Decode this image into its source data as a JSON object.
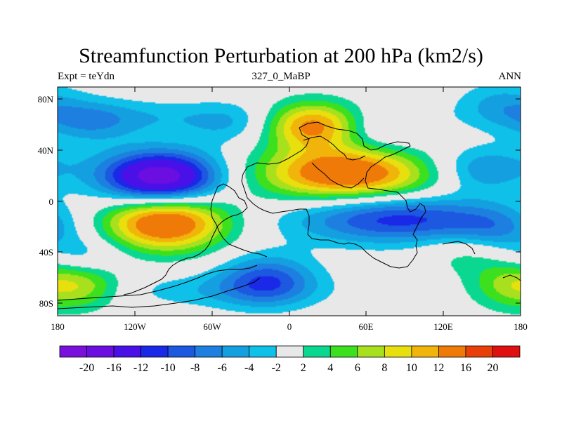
{
  "title": "Streamfunction Perturbation at 200 hPa (km2/s)",
  "left_string": "Expt = teYdn",
  "center_string": "327_0_MaBP",
  "right_string": "ANN",
  "y_axis": {
    "ticks": [
      {
        "value": 80,
        "label": "80N"
      },
      {
        "value": 40,
        "label": "40N"
      },
      {
        "value": 0,
        "label": "0"
      },
      {
        "value": -40,
        "label": "40S"
      },
      {
        "value": -80,
        "label": "80S"
      }
    ]
  },
  "x_axis": {
    "ticks": [
      {
        "value": -180,
        "label": "180"
      },
      {
        "value": -120,
        "label": "120W"
      },
      {
        "value": -60,
        "label": "60W"
      },
      {
        "value": 0,
        "label": "0"
      },
      {
        "value": 60,
        "label": "60E"
      },
      {
        "value": 120,
        "label": "120E"
      },
      {
        "value": 180,
        "label": "180"
      }
    ]
  },
  "colorbar": {
    "colors": [
      "#7a10dc",
      "#6a0ee2",
      "#4a10e8",
      "#1a28e8",
      "#1d58e0",
      "#1d80e0",
      "#14a0e0",
      "#0fc0e8",
      "#e8e8e8",
      "#0ad890",
      "#3ce01e",
      "#a8e01e",
      "#e8e00e",
      "#f0b40a",
      "#f07a08",
      "#e84008",
      "#e01010"
    ],
    "labels": [
      "-20",
      "-16",
      "-12",
      "-10",
      "-8",
      "-6",
      "-4",
      "-2",
      "2",
      "4",
      "6",
      "8",
      "10",
      "12",
      "16",
      "20"
    ]
  },
  "chart_data": {
    "type": "heatmap",
    "title": "Streamfunction Perturbation at 200 hPa (km2/s)",
    "xlabel": "",
    "ylabel": "",
    "xlim": [
      -180,
      180
    ],
    "ylim": [
      -90,
      90
    ],
    "levels": [
      -20,
      -16,
      -12,
      -10,
      -8,
      -6,
      -4,
      -2,
      2,
      4,
      6,
      8,
      10,
      12,
      16,
      20
    ],
    "features": [
      {
        "type": "low",
        "lon": -100,
        "lat": 18,
        "value": -20
      },
      {
        "type": "high",
        "lon": -97,
        "lat": -16,
        "value": 17
      },
      {
        "type": "high",
        "lon": 45,
        "lat": 22,
        "value": 16
      },
      {
        "type": "high",
        "lon": 18,
        "lat": 60,
        "value": 13
      },
      {
        "type": "low",
        "lon": 80,
        "lat": -12,
        "value": -8
      },
      {
        "type": "low",
        "lon": -17,
        "lat": -62,
        "value": -9
      },
      {
        "type": "high",
        "lon": -158,
        "lat": -64,
        "value": 7
      },
      {
        "type": "high",
        "lon": 170,
        "lat": -65,
        "value": 6
      },
      {
        "type": "low",
        "lon": -155,
        "lat": 62,
        "value": -4
      },
      {
        "type": "low",
        "lon": -45,
        "lat": 60,
        "value": -3
      },
      {
        "type": "low",
        "lon": 165,
        "lat": 78,
        "value": -4
      },
      {
        "type": "low",
        "lon": 150,
        "lat": 22,
        "value": -4
      },
      {
        "type": "low",
        "lon": 160,
        "lat": -22,
        "value": -4
      },
      {
        "type": "low",
        "lon": 70,
        "lat": 55,
        "value": -3
      },
      {
        "type": "low",
        "lon": -160,
        "lat": -45,
        "value": -5
      },
      {
        "type": "high",
        "lon": 135,
        "lat": -40,
        "value": 3
      }
    ]
  }
}
